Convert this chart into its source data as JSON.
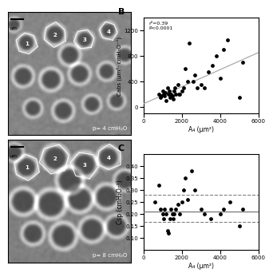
{
  "panel_B": {
    "title": "B",
    "xlabel": "A₄ (μm²)",
    "ylabel": "Cabs (μm²· cmH₂O⁻¹)",
    "annotation": "r²=0.39\nP<0.0001",
    "xlim": [
      0,
      6000
    ],
    "ylim": [
      -100,
      1400
    ],
    "xticks": [
      0,
      2000,
      4000,
      6000
    ],
    "yticks": [
      0,
      400,
      800,
      1200
    ],
    "scatter_x": [
      800,
      900,
      950,
      1000,
      1050,
      1100,
      1150,
      1200,
      1250,
      1300,
      1350,
      1400,
      1450,
      1500,
      1550,
      1600,
      1650,
      1700,
      1800,
      1850,
      1900,
      2000,
      2100,
      2200,
      2300,
      2400,
      2600,
      2700,
      2800,
      3000,
      3200,
      3400,
      3600,
      3800,
      4000,
      4200,
      4400,
      5000,
      5200
    ],
    "scatter_y": [
      200,
      150,
      180,
      250,
      200,
      170,
      220,
      100,
      300,
      200,
      250,
      150,
      200,
      180,
      120,
      250,
      300,
      200,
      350,
      200,
      200,
      250,
      300,
      600,
      400,
      1000,
      400,
      500,
      300,
      350,
      300,
      550,
      650,
      800,
      450,
      900,
      1050,
      150,
      700
    ],
    "line_x": [
      0,
      6000
    ],
    "line_y": [
      50,
      850
    ],
    "line_color": "#aaaaaa"
  },
  "panel_C": {
    "title": "C",
    "xlabel": "A₄ (μm²)",
    "ylabel": "Csp (cmH₂O⁻¹)",
    "xlim": [
      0,
      6000
    ],
    "ylim": [
      0.05,
      0.45
    ],
    "xticks": [
      0,
      2000,
      4000,
      6000
    ],
    "yticks": [
      0.1,
      0.15,
      0.2,
      0.25,
      0.3,
      0.35,
      0.4
    ],
    "scatter_x": [
      600,
      800,
      900,
      1000,
      1050,
      1100,
      1200,
      1250,
      1300,
      1400,
      1450,
      1500,
      1550,
      1600,
      1700,
      1800,
      1900,
      2000,
      2100,
      2200,
      2300,
      2500,
      2700,
      3000,
      3200,
      3500,
      4000,
      4200,
      4500,
      5000,
      5200
    ],
    "scatter_y": [
      0.25,
      0.32,
      0.22,
      0.2,
      0.18,
      0.22,
      0.2,
      0.13,
      0.12,
      0.18,
      0.22,
      0.2,
      0.18,
      0.2,
      0.22,
      0.24,
      0.2,
      0.25,
      0.3,
      0.35,
      0.26,
      0.38,
      0.3,
      0.22,
      0.2,
      0.18,
      0.2,
      0.22,
      0.25,
      0.15,
      0.22
    ],
    "hline_mean": 0.21,
    "hline_upper": 0.28,
    "hline_lower": 0.165,
    "hline_zero": 0.05
  },
  "img1_label": "p= 4 cmH₂O",
  "img2_label": "p= 8 cmH₂O",
  "bg_color": "#ffffff",
  "text_color": "#000000",
  "img_bg": 0.55,
  "bubble_centers_1": [
    [
      0.15,
      0.25
    ],
    [
      0.38,
      0.18
    ],
    [
      0.62,
      0.22
    ],
    [
      0.82,
      0.15
    ],
    [
      0.12,
      0.52
    ],
    [
      0.35,
      0.55
    ],
    [
      0.58,
      0.5
    ],
    [
      0.8,
      0.48
    ],
    [
      0.2,
      0.78
    ],
    [
      0.45,
      0.8
    ],
    [
      0.68,
      0.75
    ],
    [
      0.88,
      0.72
    ],
    [
      0.05,
      0.1
    ],
    [
      0.95,
      0.35
    ],
    [
      0.5,
      0.35
    ]
  ],
  "bubble_radii_1": [
    0.09,
    0.1,
    0.09,
    0.08,
    0.1,
    0.11,
    0.1,
    0.09,
    0.09,
    0.1,
    0.09,
    0.08,
    0.07,
    0.08,
    0.1
  ],
  "bubble_centers_2": [
    [
      0.15,
      0.22
    ],
    [
      0.38,
      0.15
    ],
    [
      0.62,
      0.2
    ],
    [
      0.82,
      0.14
    ],
    [
      0.12,
      0.5
    ],
    [
      0.35,
      0.52
    ],
    [
      0.58,
      0.48
    ],
    [
      0.8,
      0.46
    ],
    [
      0.2,
      0.76
    ],
    [
      0.45,
      0.78
    ],
    [
      0.68,
      0.73
    ],
    [
      0.88,
      0.7
    ],
    [
      0.05,
      0.1
    ],
    [
      0.95,
      0.33
    ],
    [
      0.5,
      0.33
    ]
  ],
  "bubble_radii_2": [
    0.11,
    0.13,
    0.12,
    0.11,
    0.13,
    0.14,
    0.13,
    0.12,
    0.11,
    0.13,
    0.12,
    0.11,
    0.09,
    0.1,
    0.13
  ]
}
